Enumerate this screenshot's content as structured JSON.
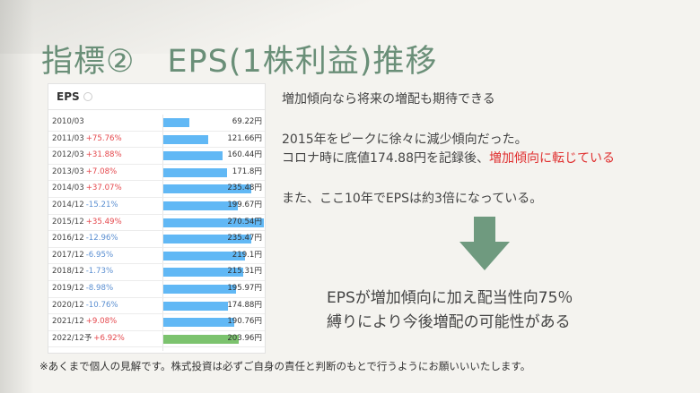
{
  "title": "指標②　EPS(1株利益)推移",
  "table": {
    "header": "EPS",
    "max_value": 270.54,
    "rows": [
      {
        "date": "2010/03",
        "change": "",
        "dir": "",
        "value": 69.22,
        "label": "69.22円",
        "forecast": false
      },
      {
        "date": "2011/03",
        "change": "+75.76%",
        "dir": "up",
        "value": 121.66,
        "label": "121.66円",
        "forecast": false
      },
      {
        "date": "2012/03",
        "change": "+31.88%",
        "dir": "up",
        "value": 160.44,
        "label": "160.44円",
        "forecast": false
      },
      {
        "date": "2013/03",
        "change": "+7.08%",
        "dir": "up",
        "value": 171.8,
        "label": "171.8円",
        "forecast": false
      },
      {
        "date": "2014/03",
        "change": "+37.07%",
        "dir": "up",
        "value": 235.48,
        "label": "235.48円",
        "forecast": false
      },
      {
        "date": "2014/12",
        "change": "-15.21%",
        "dir": "down",
        "value": 199.67,
        "label": "199.67円",
        "forecast": false
      },
      {
        "date": "2015/12",
        "change": "+35.49%",
        "dir": "up",
        "value": 270.54,
        "label": "270.54円",
        "forecast": false
      },
      {
        "date": "2016/12",
        "change": "-12.96%",
        "dir": "down",
        "value": 235.47,
        "label": "235.47円",
        "forecast": false
      },
      {
        "date": "2017/12",
        "change": "-6.95%",
        "dir": "down",
        "value": 219.1,
        "label": "219.1円",
        "forecast": false
      },
      {
        "date": "2018/12",
        "change": "-1.73%",
        "dir": "down",
        "value": 215.31,
        "label": "215.31円",
        "forecast": false
      },
      {
        "date": "2019/12",
        "change": "-8.98%",
        "dir": "down",
        "value": 195.97,
        "label": "195.97円",
        "forecast": false
      },
      {
        "date": "2020/12",
        "change": "-10.76%",
        "dir": "down",
        "value": 174.88,
        "label": "174.88円",
        "forecast": false
      },
      {
        "date": "2021/12",
        "change": "+9.08%",
        "dir": "up",
        "value": 190.76,
        "label": "190.76円",
        "forecast": false
      },
      {
        "date": "2022/12予",
        "change": "+6.92%",
        "dir": "up",
        "value": 203.96,
        "label": "203.96円",
        "forecast": true
      }
    ]
  },
  "text": {
    "line1": "増加傾向なら将来の増配も期待できる",
    "line2": "2015年をピークに徐々に減少傾向だった。",
    "line3a": "コロナ時に底値174.88円を記録後、",
    "line3b": "増加傾向に転じている",
    "line4": "また、ここ10年でEPSは約3倍になっている。",
    "conclusion1": "EPSが増加傾向に加え配当性向75％",
    "conclusion2": "縛りにより今後増配の可能性がある",
    "note": "※あくまで個人の見解です。株式投資は必ずご自身の責任と判断のもとで行うようにお願いいいたします。"
  },
  "colors": {
    "title": "#6a8f78",
    "arrow": "#6f9a7f",
    "bar": "#61b8f5",
    "bar_forecast": "#7cc36e",
    "highlight": "#e03030"
  }
}
